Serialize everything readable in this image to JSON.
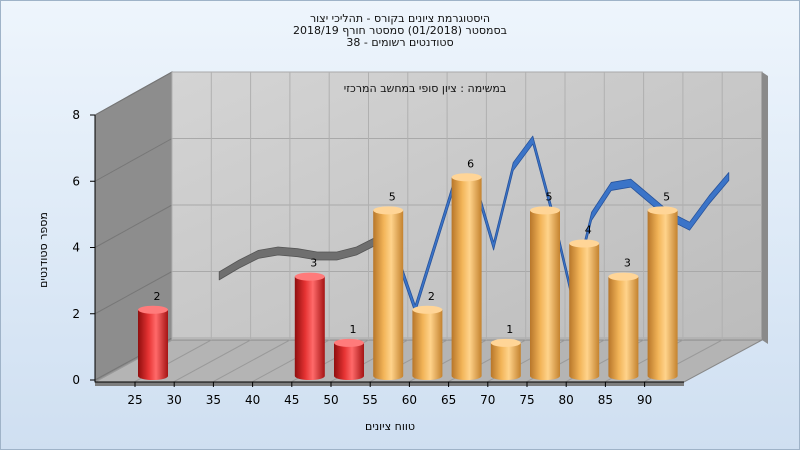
{
  "chart_data": {
    "type": "bar",
    "title_lines": [
      "היסטוגרמת ציונים בקורס - תהליכי יצור",
      "בסמסטר (01/2018) סמסטר חורף 2018/19",
      "סטודנטים רשומים - 38"
    ],
    "annotation": "במשימה : ציון סופי במחשב המרכזי",
    "xlabel": "טווח ציונים",
    "ylabel": "מספר סטודנטים",
    "x_ticks": [
      "25",
      "30",
      "35",
      "40",
      "45",
      "50",
      "55",
      "60",
      "65",
      "70",
      "75",
      "80",
      "85",
      "90"
    ],
    "y_ticks": [
      "0",
      "2",
      "4",
      "6",
      "8"
    ],
    "ylim": [
      0,
      8
    ],
    "bars": [
      {
        "x": 25,
        "value": 2,
        "label": "2",
        "color": "red"
      },
      {
        "x": 45,
        "value": 3,
        "label": "3",
        "color": "red"
      },
      {
        "x": 50,
        "value": 1,
        "label": "1",
        "color": "red"
      },
      {
        "x": 55,
        "value": 5,
        "label": "5",
        "color": "orange"
      },
      {
        "x": 60,
        "value": 2,
        "label": "2",
        "color": "orange"
      },
      {
        "x": 65,
        "value": 6,
        "label": "6",
        "color": "orange"
      },
      {
        "x": 70,
        "value": 1,
        "label": "1",
        "color": "orange"
      },
      {
        "x": 75,
        "value": 5,
        "label": "5",
        "color": "orange"
      },
      {
        "x": 80,
        "value": 4,
        "label": "4",
        "color": "orange"
      },
      {
        "x": 85,
        "value": 3,
        "label": "3",
        "color": "orange"
      },
      {
        "x": 90,
        "value": 5,
        "label": "5",
        "color": "orange"
      }
    ],
    "curve_gray_x": [
      30,
      32.5,
      35,
      37.5,
      40,
      42.5,
      45,
      47.5,
      50
    ],
    "curve_gray_y": [
      2.6,
      2.95,
      3.25,
      3.35,
      3.3,
      3.2,
      3.2,
      3.35,
      3.65
    ],
    "curve_blue_x": [
      50,
      52.5,
      55,
      57.5,
      60,
      62.5,
      65,
      67.5,
      70,
      72.5,
      75,
      77.5,
      80,
      82.5,
      85,
      87.5,
      90,
      92.5,
      95
    ],
    "curve_blue_y": [
      3.65,
      3.3,
      1.6,
      3.5,
      5.4,
      5.5,
      3.5,
      5.9,
      6.7,
      4.5,
      2.0,
      4.4,
      5.3,
      5.4,
      4.9,
      4.4,
      4.1,
      4.9,
      5.6
    ],
    "colors": {
      "red": "#e22828",
      "orange": "#f0b04e",
      "blue": "#3b74c8",
      "gray": "#6f6f6f",
      "back_wall": "#c7c7c7",
      "side_wall": "#8d8d8d",
      "floor": "#b4b4b4"
    },
    "grid": true
  }
}
